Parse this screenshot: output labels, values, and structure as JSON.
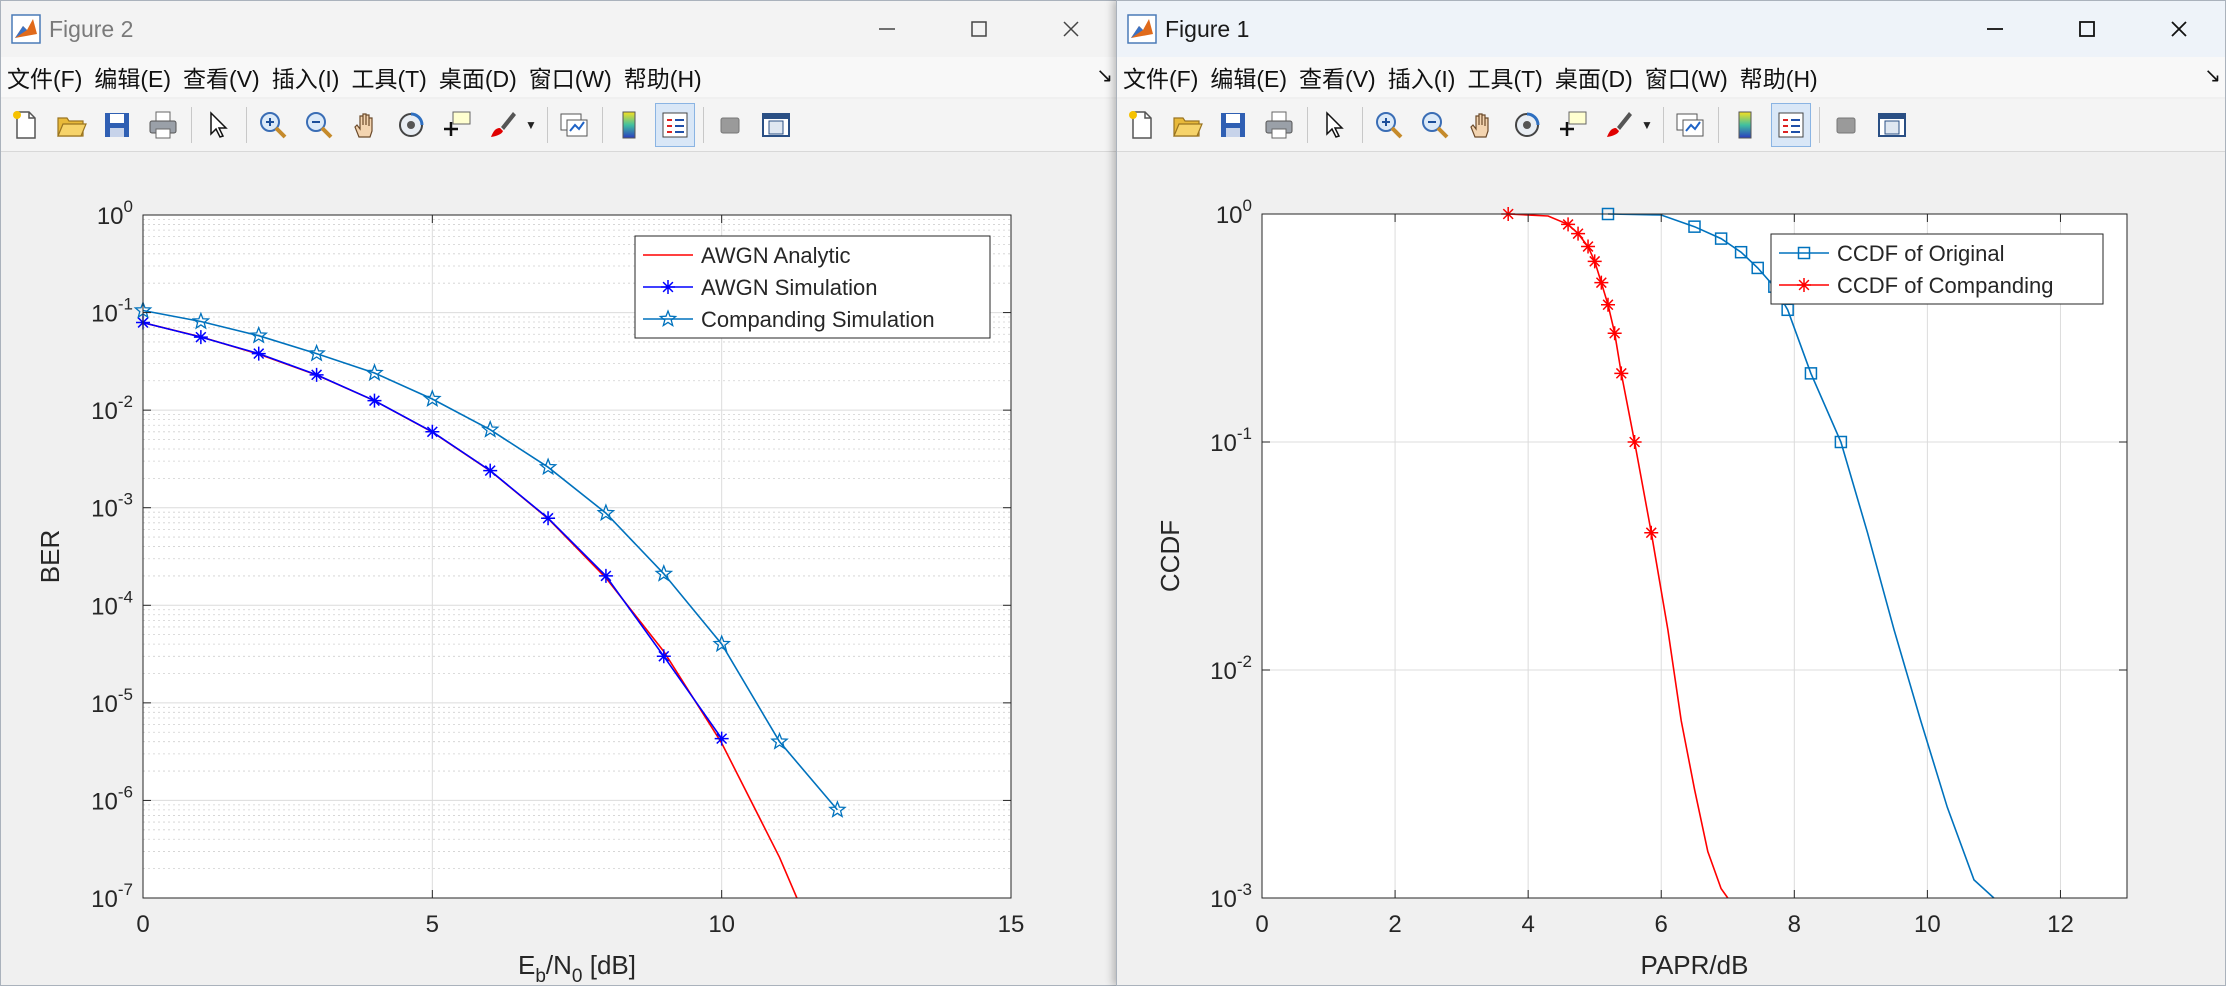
{
  "windows": [
    {
      "id": "fig2",
      "title": "Figure 2",
      "menus": [
        "文件(F)",
        "编辑(E)",
        "查看(V)",
        "插入(I)",
        "工具(T)",
        "桌面(D)",
        "窗口(W)",
        "帮助(H)"
      ],
      "toolbar_icons": [
        "new-file-icon",
        "open-folder-icon",
        "save-icon",
        "print-icon",
        "pointer-icon",
        "zoom-in-icon",
        "zoom-out-icon",
        "pan-hand-icon",
        "rotate-3d-icon",
        "data-cursor-icon",
        "brush-icon",
        "link-plot-icon",
        "colorbar-icon",
        "legend-icon",
        "hide-plot-tools-icon",
        "show-plot-tools-icon"
      ],
      "chart_data": {
        "type": "line",
        "title": "",
        "xlabel": "Eb/N0 [dB]",
        "xlabel_parts": {
          "main": "E",
          "sub1": "b",
          "mid": "/N",
          "sub2": "0",
          "tail": " [dB]"
        },
        "ylabel": "BER",
        "xlim": [
          0,
          15
        ],
        "ylim_log10": [
          -7,
          0
        ],
        "yscale": "log",
        "grid": true,
        "minor_grid": true,
        "legend_position": "top-right",
        "x_ticks": [
          "0",
          "5",
          "10",
          "15"
        ],
        "y_ticks": [
          {
            "base": "10",
            "exp": "0"
          },
          {
            "base": "10",
            "exp": "-1"
          },
          {
            "base": "10",
            "exp": "-2"
          },
          {
            "base": "10",
            "exp": "-3"
          },
          {
            "base": "10",
            "exp": "-4"
          },
          {
            "base": "10",
            "exp": "-5"
          },
          {
            "base": "10",
            "exp": "-6"
          },
          {
            "base": "10",
            "exp": "-7"
          }
        ],
        "series": [
          {
            "name": "AWGN Analytic",
            "color": "#ff0000",
            "marker": "none",
            "x": [
              0,
              1,
              2,
              3,
              4,
              5,
              6,
              7,
              8,
              9,
              10,
              11,
              11.3
            ],
            "y": [
              0.0787,
              0.0563,
              0.0375,
              0.0229,
              0.0125,
              0.00595,
              0.00239,
              0.000773,
              0.000191,
              3.36e-05,
              3.87e-06,
              2.61e-07,
              1e-07
            ]
          },
          {
            "name": "AWGN Simulation",
            "color": "#0000ff",
            "marker": "asterisk",
            "x": [
              0,
              1,
              2,
              3,
              4,
              5,
              6,
              7,
              8,
              9,
              10
            ],
            "y": [
              0.079,
              0.056,
              0.038,
              0.023,
              0.0125,
              0.006,
              0.0024,
              0.00078,
              0.0002,
              3e-05,
              4.3e-06
            ]
          },
          {
            "name": "Companding Simulation",
            "color": "#0072bd",
            "marker": "pentagram",
            "x": [
              0,
              1,
              2,
              3,
              4,
              5,
              6,
              7,
              8,
              9,
              10,
              11,
              12
            ],
            "y": [
              0.105,
              0.081,
              0.058,
              0.038,
              0.024,
              0.013,
              0.0063,
              0.0026,
              0.00088,
              0.00021,
              4e-05,
              4e-06,
              8e-07
            ]
          }
        ]
      }
    },
    {
      "id": "fig1",
      "title": "Figure 1",
      "menus": [
        "文件(F)",
        "编辑(E)",
        "查看(V)",
        "插入(I)",
        "工具(T)",
        "桌面(D)",
        "窗口(W)",
        "帮助(H)"
      ],
      "toolbar_icons": [
        "new-file-icon",
        "open-folder-icon",
        "save-icon",
        "print-icon",
        "pointer-icon",
        "zoom-in-icon",
        "zoom-out-icon",
        "pan-hand-icon",
        "rotate-3d-icon",
        "data-cursor-icon",
        "brush-icon",
        "link-plot-icon",
        "colorbar-icon",
        "legend-icon",
        "hide-plot-tools-icon",
        "show-plot-tools-icon"
      ],
      "chart_data": {
        "type": "line",
        "title": "",
        "xlabel": "PAPR/dB",
        "ylabel": "CCDF",
        "xlim": [
          0,
          13
        ],
        "ylim_log10": [
          -3,
          0
        ],
        "yscale": "log",
        "grid": true,
        "minor_grid": false,
        "legend_position": "top-right",
        "x_ticks": [
          "0",
          "2",
          "4",
          "6",
          "8",
          "10",
          "12"
        ],
        "y_ticks": [
          {
            "base": "10",
            "exp": "0"
          },
          {
            "base": "10",
            "exp": "-1"
          },
          {
            "base": "10",
            "exp": "-2"
          },
          {
            "base": "10",
            "exp": "-3"
          }
        ],
        "series": [
          {
            "name": "CCDF of Original",
            "color": "#0072bd",
            "marker": "square",
            "x": [
              5.2,
              6.0,
              6.5,
              6.9,
              7.2,
              7.45,
              7.7,
              7.9,
              8.25,
              8.7,
              9.1,
              9.5,
              9.9,
              10.3,
              10.7,
              11.0
            ],
            "y": [
              1.0,
              0.99,
              0.88,
              0.78,
              0.68,
              0.58,
              0.48,
              0.38,
              0.2,
              0.1,
              0.04,
              0.015,
              0.006,
              0.0025,
              0.0012,
              0.001
            ],
            "marker_x": [
              5.2,
              6.5,
              6.9,
              7.2,
              7.45,
              7.7,
              7.9,
              8.25,
              8.7
            ],
            "marker_y": [
              1.0,
              0.88,
              0.78,
              0.68,
              0.58,
              0.48,
              0.38,
              0.2,
              0.1
            ]
          },
          {
            "name": "CCDF of Companding",
            "color": "#ff0000",
            "marker": "asterisk",
            "x": [
              3.7,
              4.3,
              4.6,
              4.75,
              4.9,
              5.0,
              5.1,
              5.2,
              5.3,
              5.4,
              5.6,
              5.85,
              6.1,
              6.3,
              6.5,
              6.7,
              6.9,
              7.0
            ],
            "y": [
              1.0,
              0.98,
              0.9,
              0.82,
              0.72,
              0.62,
              0.5,
              0.4,
              0.3,
              0.2,
              0.1,
              0.04,
              0.015,
              0.006,
              0.003,
              0.0016,
              0.0011,
              0.001
            ],
            "marker_x": [
              3.7,
              4.6,
              4.75,
              4.9,
              5.0,
              5.1,
              5.2,
              5.3,
              5.4,
              5.6,
              5.85
            ],
            "marker_y": [
              1.0,
              0.9,
              0.82,
              0.72,
              0.62,
              0.5,
              0.4,
              0.3,
              0.2,
              0.1,
              0.04
            ]
          }
        ]
      }
    }
  ]
}
